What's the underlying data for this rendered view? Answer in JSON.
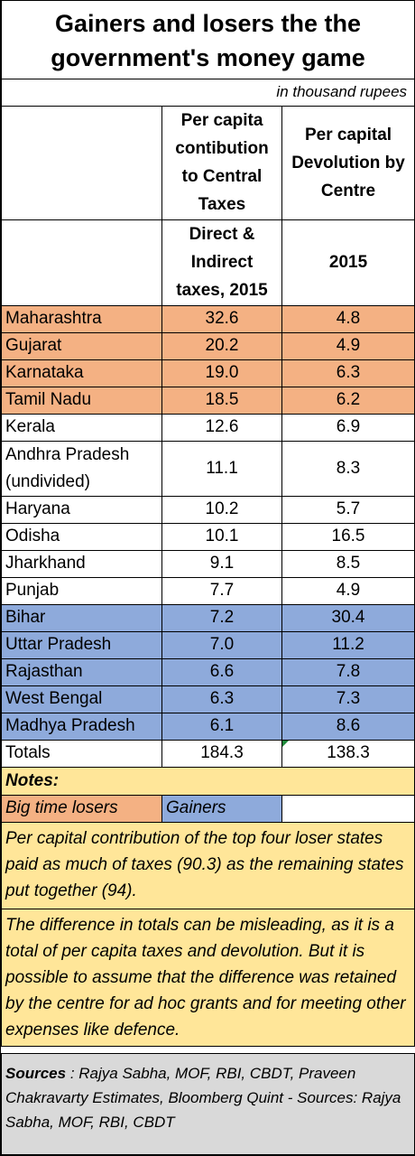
{
  "title_line1": "Gainers and losers the the",
  "title_line2": "government's money game",
  "units": "in thousand rupees",
  "headers": {
    "col1_line1": "Per capita",
    "col1_line2": "contibution",
    "col1_line3": "to Central",
    "col1_line4": "Taxes",
    "col2_line1": "Per capital",
    "col2_line2": "Devolution by",
    "col2_line3": "Centre",
    "col1_sub_line1": "Direct &",
    "col1_sub_line2": "Indirect",
    "col1_sub_line3": "taxes, 2015",
    "col2_sub": "2015"
  },
  "chart_data": {
    "type": "table",
    "title": "Gainers and losers the the government's money game",
    "units": "in thousand rupees",
    "columns": [
      "Per capita contibution to Central Taxes — Direct & Indirect taxes, 2015",
      "Per capital Devolution by Centre — 2015"
    ],
    "rows": [
      {
        "state": "Maharashtra",
        "contribution": "32.6",
        "devolution": "4.8",
        "group": "loser"
      },
      {
        "state": "Gujarat",
        "contribution": "20.2",
        "devolution": "4.9",
        "group": "loser"
      },
      {
        "state": "Karnataka",
        "contribution": "19.0",
        "devolution": "6.3",
        "group": "loser"
      },
      {
        "state": "Tamil Nadu",
        "contribution": "18.5",
        "devolution": "6.2",
        "group": "loser"
      },
      {
        "state": "Kerala",
        "contribution": "12.6",
        "devolution": "6.9",
        "group": "neutral"
      },
      {
        "state": "Andhra Pradesh",
        "state_line2": "(undivided)",
        "contribution": "11.1",
        "devolution": "8.3",
        "group": "neutral"
      },
      {
        "state": "Haryana",
        "contribution": "10.2",
        "devolution": "5.7",
        "group": "neutral"
      },
      {
        "state": "Odisha",
        "contribution": "10.1",
        "devolution": "16.5",
        "group": "neutral"
      },
      {
        "state": "Jharkhand",
        "contribution": "9.1",
        "devolution": "8.5",
        "group": "neutral"
      },
      {
        "state": "Punjab",
        "contribution": "7.7",
        "devolution": "4.9",
        "group": "neutral"
      },
      {
        "state": "Bihar",
        "contribution": "7.2",
        "devolution": "30.4",
        "group": "gainer"
      },
      {
        "state": "Uttar Pradesh",
        "contribution": "7.0",
        "devolution": "11.2",
        "group": "gainer"
      },
      {
        "state": "Rajasthan",
        "contribution": "6.6",
        "devolution": "7.8",
        "group": "gainer"
      },
      {
        "state": "West Bengal",
        "contribution": "6.3",
        "devolution": "7.3",
        "group": "gainer"
      },
      {
        "state": "Madhya Pradesh",
        "contribution": "6.1",
        "devolution": "8.6",
        "group": "gainer"
      }
    ],
    "totals": {
      "label": "Totals",
      "contribution": "184.3",
      "devolution": "138.3"
    }
  },
  "notes": {
    "heading": "Notes:",
    "legend_loser": "Big time losers",
    "legend_gainer": "Gainers",
    "note1": "Per capital contribution of the top four loser states paid as much of taxes (90.3) as the remaining states put together (94).",
    "note2": "The difference in totals can be misleading, as it is a total of per capita taxes and devolution.  But it is possible to assume that the difference was retained by the centre for ad hoc grants and for meeting other expenses like defence."
  },
  "sources": {
    "label": "Sources",
    "text": " : Rajya Sabha, MOF, RBI, CBDT, Praveen Chakravarty Estimates, Bloomberg Quint - Sources: Rajya Sabha, MOF, RBI, CBDT"
  },
  "colors": {
    "losers": "#f4b183",
    "gainers": "#8eaadb",
    "notes": "#ffe699",
    "sources": "#d9d9d9"
  }
}
